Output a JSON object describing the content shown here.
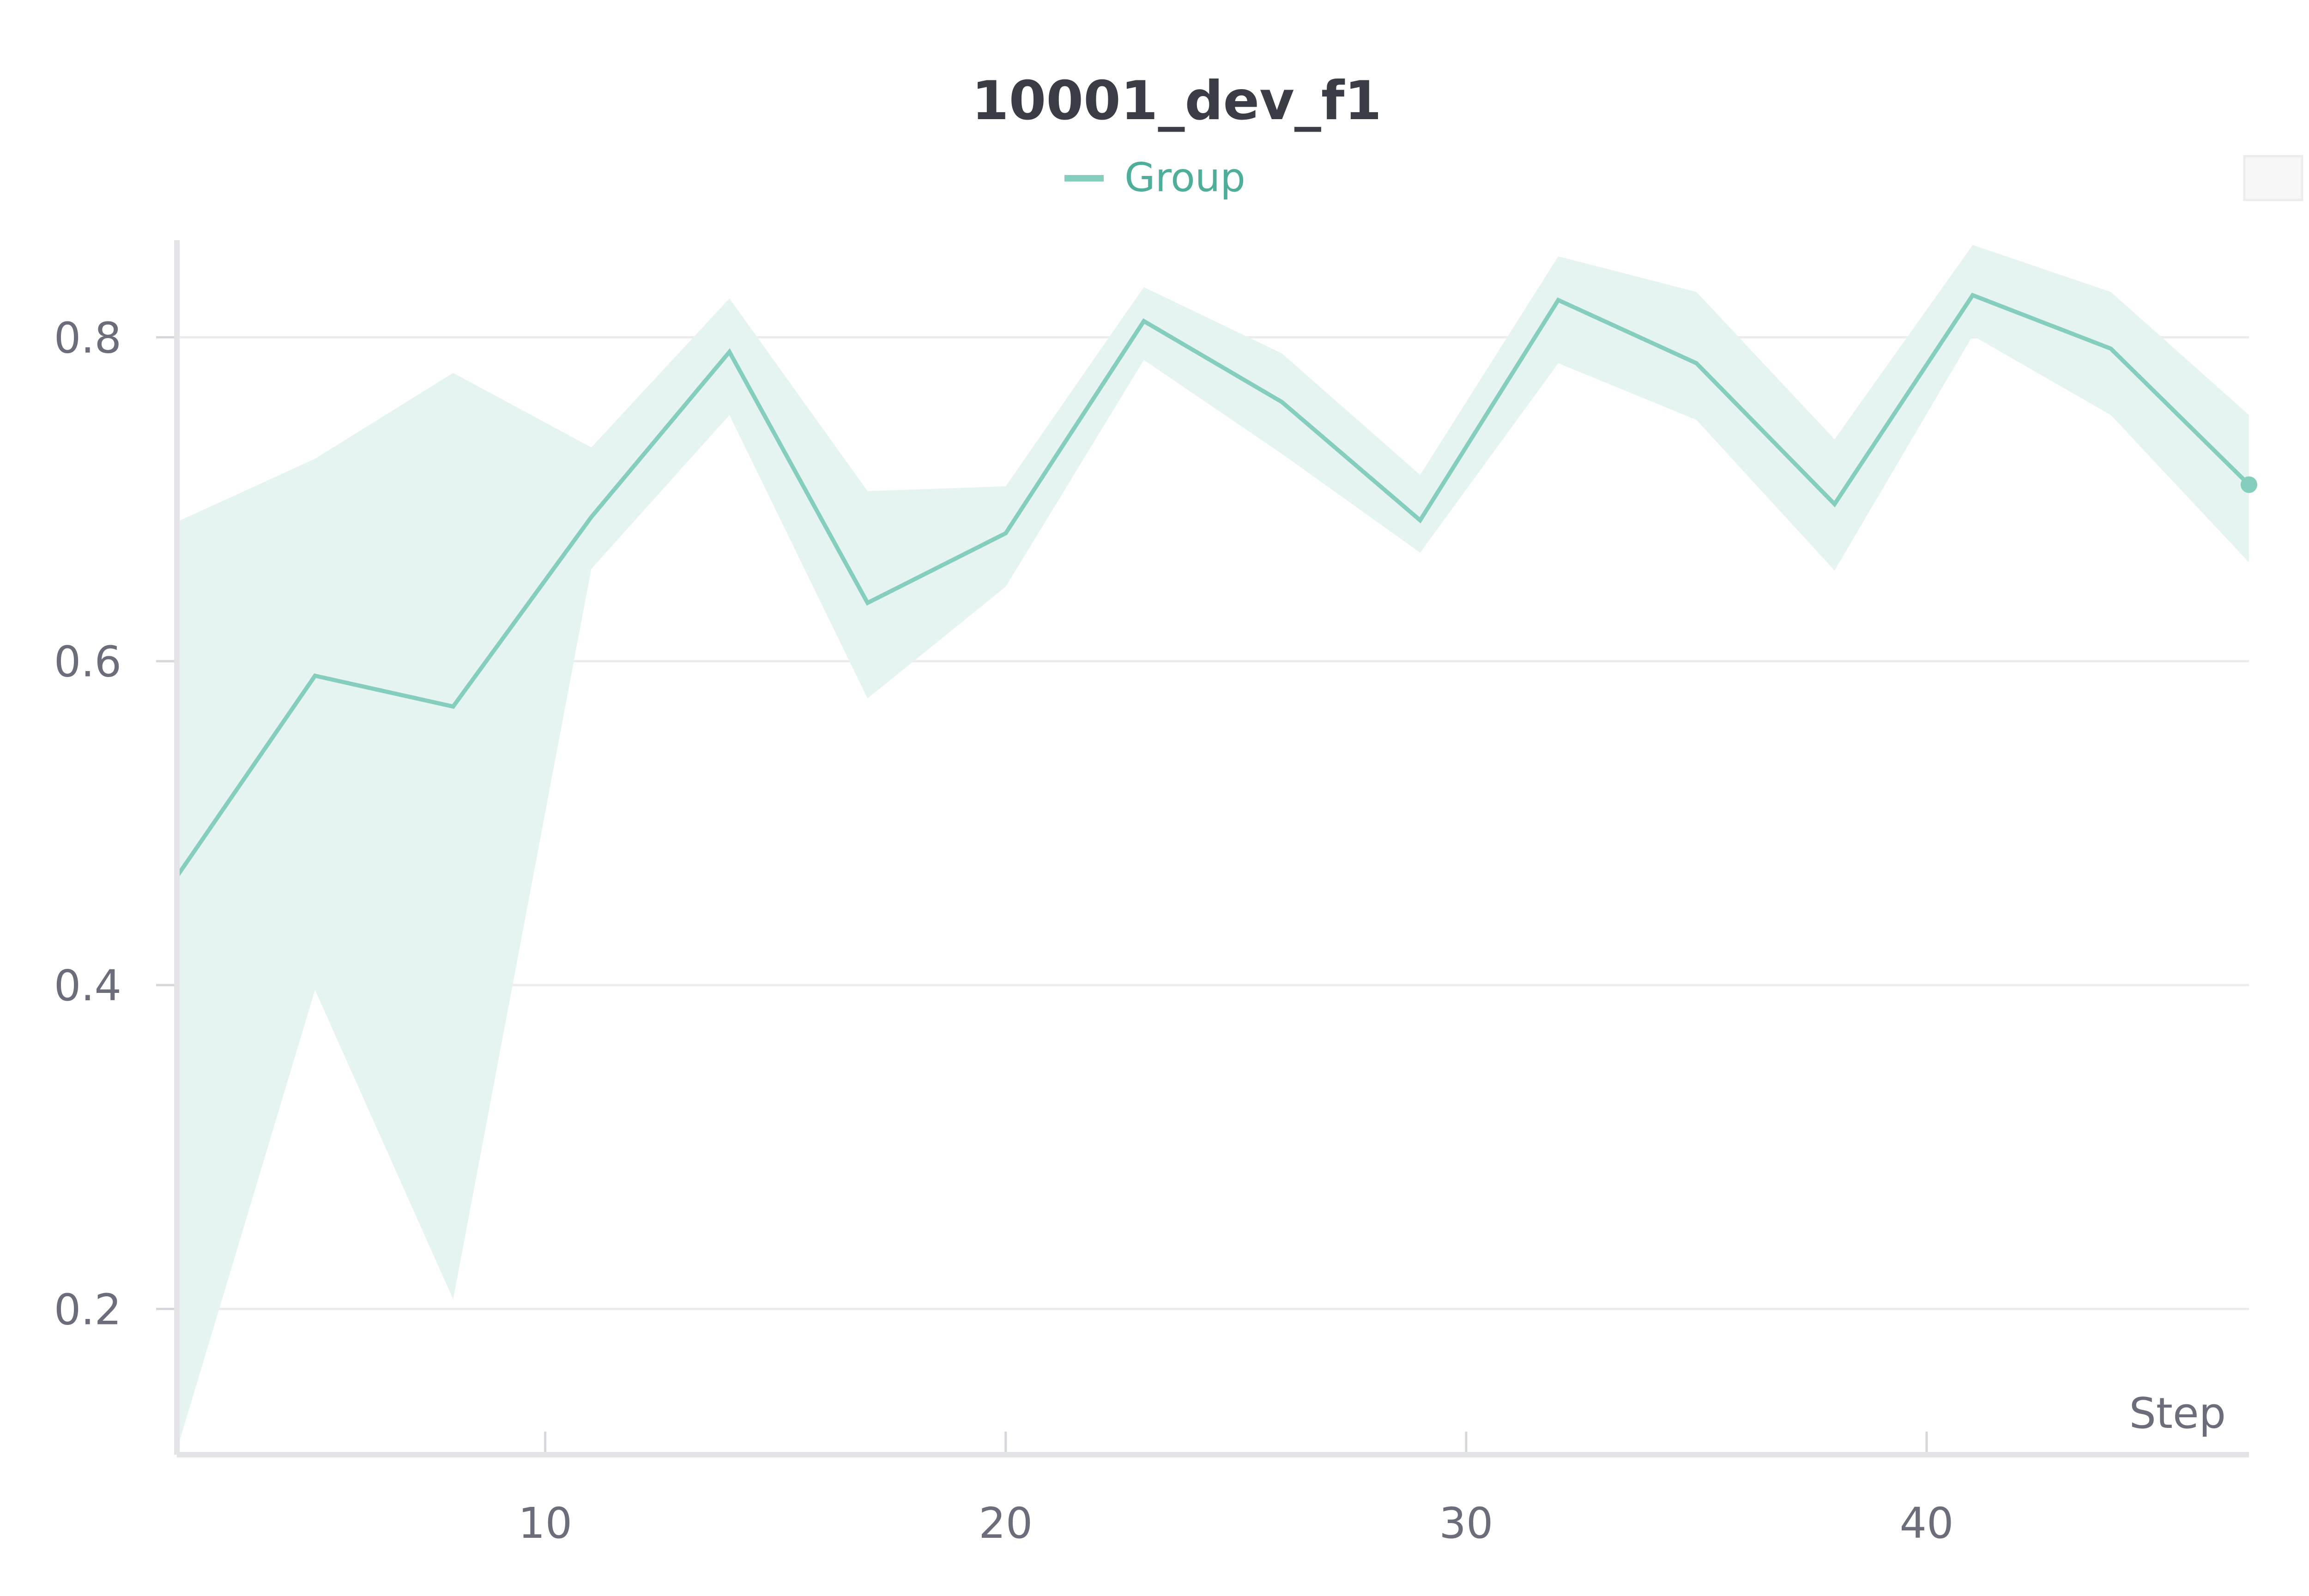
{
  "chart_data": {
    "type": "line",
    "title": "10001_dev_f1",
    "xlabel": "Step",
    "ylabel": "",
    "xlim": [
      2,
      47
    ],
    "ylim": [
      0.11,
      0.86
    ],
    "x_ticks": [
      10,
      20,
      30,
      40
    ],
    "y_ticks": [
      0.2,
      0.4,
      0.6,
      0.8
    ],
    "x_tick_labels": [
      "10",
      "20",
      "30",
      "40"
    ],
    "y_tick_labels": [
      "0.2",
      "0.4",
      "0.6",
      "0.8"
    ],
    "grid": "horizontal",
    "legend_position": "top-center",
    "series": [
      {
        "name": "Group",
        "color": "#85cdbd",
        "band_color": "#e5f4f0",
        "x": [
          2,
          5,
          8,
          11,
          14,
          17,
          20,
          23,
          26,
          29,
          32,
          35,
          38,
          41,
          44,
          47
        ],
        "values": [
          0.467,
          0.591,
          0.572,
          0.689,
          0.791,
          0.636,
          0.679,
          0.81,
          0.76,
          0.687,
          0.823,
          0.784,
          0.697,
          0.826,
          0.793,
          0.709
        ],
        "band_upper": [
          0.686,
          0.725,
          0.778,
          0.732,
          0.824,
          0.705,
          0.708,
          0.831,
          0.79,
          0.715,
          0.85,
          0.828,
          0.737,
          0.857,
          0.828,
          0.752
        ],
        "band_lower": [
          0.113,
          0.397,
          0.206,
          0.657,
          0.752,
          0.577,
          0.646,
          0.786,
          0.728,
          0.667,
          0.784,
          0.749,
          0.656,
          0.801,
          0.752,
          0.661
        ]
      }
    ]
  }
}
